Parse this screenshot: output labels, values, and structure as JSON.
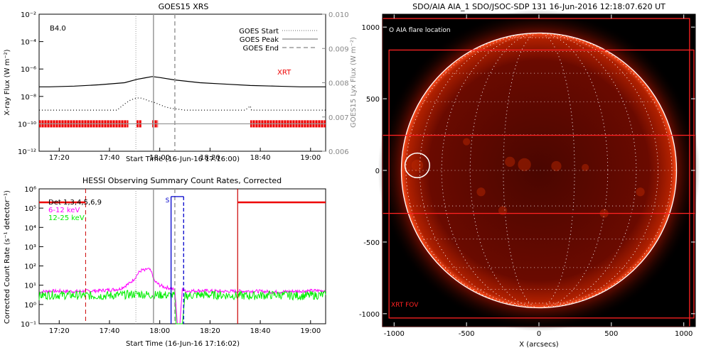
{
  "colors": {
    "goes_main": "#000000",
    "lya": "#000000",
    "xrt_bar": "#ee0000",
    "goes_start_line": "#999999",
    "goes_peak_line": "#999999",
    "goes_end_line": "#999999",
    "hessi_6_12": "#ff00ff",
    "hessi_12_25": "#00ee00",
    "hessi_flag": "#0000cc",
    "xrt_fov": "#ff2222",
    "sun_disk": "#5a0800",
    "limb": "#ffffff"
  },
  "chart_data": [
    {
      "type": "line",
      "title": "GOES15 XRS",
      "xlabel": "Start Time (16-Jun-16 17:16:00)",
      "ylabel": "X-ray Flux (W m⁻²)",
      "ylabel_right": "GOES15 Lyx Flux (W m⁻²)",
      "x_ticks": [
        "17:20",
        "17:40",
        "18:00",
        "18:20",
        "18:40",
        "19:00"
      ],
      "y_ticks": [
        "10⁻²",
        "10⁻⁴",
        "10⁻⁶",
        "10⁻⁸",
        "10⁻¹⁰",
        "10⁻¹²"
      ],
      "y_ticks_right": [
        "0.010",
        "0.009",
        "0.008",
        "0.007",
        "0.006"
      ],
      "xlim_minutes": [
        -4,
        110
      ],
      "ylim_log10": [
        -12,
        -2
      ],
      "ylim_right": [
        0.006,
        0.01
      ],
      "goes_class_label": "B4.0",
      "legend": [
        {
          "name": "GOES Start",
          "style": "dotted"
        },
        {
          "name": "GOES Peak",
          "style": "solid"
        },
        {
          "name": "GOES End",
          "style": "dashed"
        }
      ],
      "legend_position": "top-right",
      "event_lines_minutes": {
        "start": 34.5,
        "peak": 41.5,
        "end": 50
      },
      "xrt_label": "XRT",
      "xrt_bar_log10": -10.0,
      "xrt_intervals_minutes": [
        [
          -4,
          31.5
        ],
        [
          34.8,
          36.8
        ],
        [
          41.0,
          43.3
        ],
        [
          80,
          110
        ]
      ],
      "series": [
        {
          "style": "solid",
          "x": [
            -4,
            0,
            10,
            20,
            30,
            35,
            38,
            41,
            44,
            50,
            60,
            70,
            80,
            90,
            100,
            110
          ],
          "y": [
            -7.3,
            -7.3,
            -7.25,
            -7.15,
            -7.0,
            -6.75,
            -6.65,
            -6.55,
            -6.62,
            -6.8,
            -7.0,
            -7.1,
            -7.2,
            -7.25,
            -7.3,
            -7.3
          ]
        },
        {
          "style": "dotted",
          "x": [
            -4,
            27,
            28,
            30,
            32,
            34,
            36,
            38,
            40,
            42,
            44,
            46,
            48,
            50,
            52,
            54,
            78,
            80,
            80.5,
            81,
            110
          ],
          "y": [
            -9.0,
            -9.0,
            -8.85,
            -8.55,
            -8.3,
            -8.15,
            -8.1,
            -8.2,
            -8.35,
            -8.45,
            -8.6,
            -8.75,
            -8.85,
            -8.9,
            -8.95,
            -9.0,
            -9.0,
            -8.7,
            -9.0,
            -9.0,
            -9.0
          ]
        },
        {
          "style": "solid",
          "color": "#999999",
          "x": [
            -4,
            110
          ],
          "y": [
            -10.0,
            -10.0
          ]
        }
      ]
    },
    {
      "type": "line",
      "title": "HESSI Observing Summary Count Rates, Corrected",
      "xlabel": "Start Time (16-Jun-16 17:16:02)",
      "ylabel": "Corrected Count Rate (s⁻¹ detector⁻¹)",
      "x_ticks": [
        "17:20",
        "17:40",
        "18:00",
        "18:20",
        "18:40",
        "19:00"
      ],
      "y_ticks": [
        "10⁶",
        "10⁵",
        "10⁴",
        "10³",
        "10²",
        "10¹",
        "10⁰",
        "10⁻¹"
      ],
      "xlim_minutes": [
        -4,
        110
      ],
      "ylim_log10": [
        -1,
        6
      ],
      "legend": [
        {
          "name": "Det 1,3,4,5,6,9",
          "color": "#000000"
        },
        {
          "name": "6-12 keV",
          "color": "#ff00ff"
        },
        {
          "name": "12-25 keV",
          "color": "#00ee00"
        }
      ],
      "legend_position": "top-left",
      "flag_label": "S",
      "flag_span_minutes": [
        48.5,
        53.5
      ],
      "event_lines_minutes": {
        "start": 34.5,
        "peak": 41.5,
        "end": 50
      },
      "red_dashed_line_minutes": 14.5,
      "red_solid_line_minutes": 75,
      "red_bar_segments": [
        [
          -4,
          14.5,
          5.3
        ],
        [
          75,
          110,
          5.3
        ]
      ],
      "series": [
        {
          "name": "6-12 keV",
          "x": [
            -4,
            0,
            10,
            20,
            28,
            30,
            32,
            34,
            35,
            36,
            37,
            38,
            39,
            40,
            41,
            42,
            44,
            46,
            48,
            50,
            51,
            52,
            53,
            54,
            60,
            70,
            80,
            90,
            100,
            110
          ],
          "y": [
            0.65,
            0.7,
            0.68,
            0.72,
            0.8,
            0.95,
            1.1,
            1.35,
            1.55,
            1.7,
            1.8,
            1.75,
            1.85,
            1.8,
            1.6,
            1.2,
            1.0,
            0.9,
            0.85,
            0.75,
            -1,
            -1,
            0.8,
            0.7,
            0.72,
            0.68,
            0.7,
            0.65,
            0.7,
            0.72
          ]
        },
        {
          "name": "12-25 keV",
          "x": [
            -4,
            0,
            10,
            20,
            30,
            35,
            40,
            45,
            50,
            50.5,
            53,
            54,
            60,
            70,
            80,
            90,
            100,
            110
          ],
          "y": [
            0.45,
            0.5,
            0.48,
            0.45,
            0.5,
            0.55,
            0.5,
            0.5,
            0.45,
            -1,
            -1,
            0.45,
            0.5,
            0.48,
            0.45,
            0.5,
            0.45,
            0.5
          ]
        }
      ]
    },
    {
      "type": "heatmap",
      "title": "SDO/AIA AIA_1 SDO/JSOC-SDP 131 16-Jun-2016 12:18:07.620 UT",
      "xlabel": "X (arcsecs)",
      "ylabel": "",
      "x_ticks": [
        "-1000",
        "-500",
        "0",
        "500",
        "1000"
      ],
      "y_ticks": [
        "1000",
        "500",
        "0",
        "-500",
        "-1000"
      ],
      "xlim": [
        -1080,
        1080
      ],
      "ylim": [
        -1090,
        1090
      ],
      "grid": true,
      "flare_location_label": "O AIA flare location",
      "xrt_fov_label": "XRT FOV",
      "flare_circle_arcsec": {
        "x": -840,
        "y": 35,
        "r": 85
      },
      "solar_radius_arcsec": 950,
      "xrt_fov_boxes_arcsec": [
        [
          -1080,
          -1090,
          1040,
          1060
        ],
        [
          -1035,
          -1030,
          1070,
          840
        ],
        [
          -1080,
          -300,
          1080,
          245
        ]
      ]
    }
  ]
}
